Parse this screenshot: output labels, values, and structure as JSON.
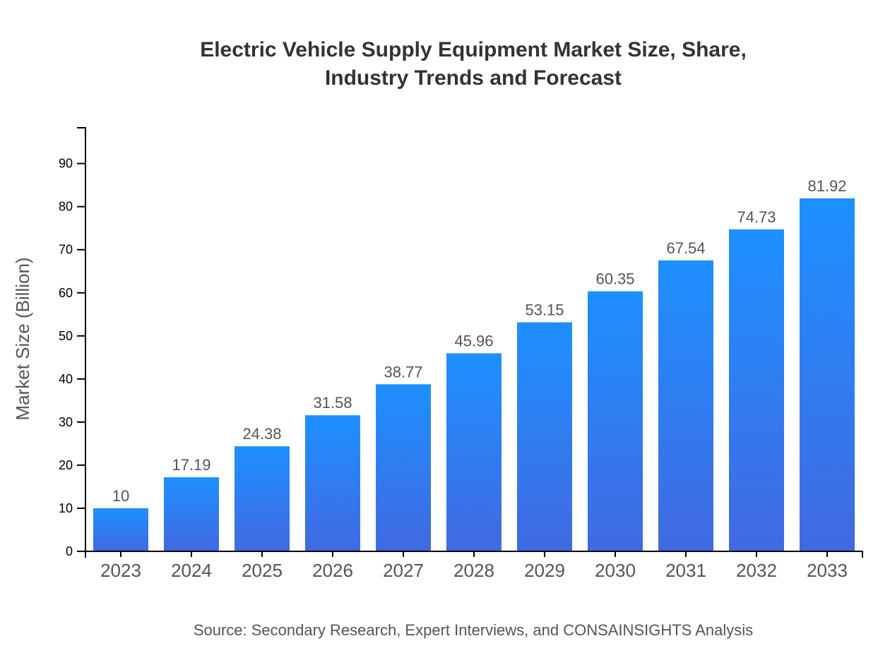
{
  "chart_data": {
    "type": "bar",
    "title_lines": [
      "Electric Vehicle Supply Equipment Market Size, Share,",
      "Industry Trends and Forecast"
    ],
    "xlabel": "",
    "ylabel": "Market Size (Billion)",
    "categories": [
      "2023",
      "2024",
      "2025",
      "2026",
      "2027",
      "2028",
      "2029",
      "2030",
      "2031",
      "2032",
      "2033"
    ],
    "values": [
      10,
      17.19,
      24.38,
      31.58,
      38.77,
      45.96,
      53.15,
      60.35,
      67.54,
      74.73,
      81.92
    ],
    "data_labels": [
      "10",
      "17.19",
      "24.38",
      "31.58",
      "38.77",
      "45.96",
      "53.15",
      "60.35",
      "67.54",
      "74.73",
      "81.92"
    ],
    "ylim": [
      0,
      98.3
    ],
    "yticks": [
      0,
      10,
      20,
      30,
      40,
      50,
      60,
      70,
      80,
      90
    ],
    "grid": false,
    "colors": {
      "bar_top": "#1e90ff",
      "bar_bottom": "#4169e1",
      "text": "#555555",
      "title": "#333333"
    },
    "source": "Source: Secondary Research, Expert Interviews, and CONSAINSIGHTS Analysis"
  }
}
